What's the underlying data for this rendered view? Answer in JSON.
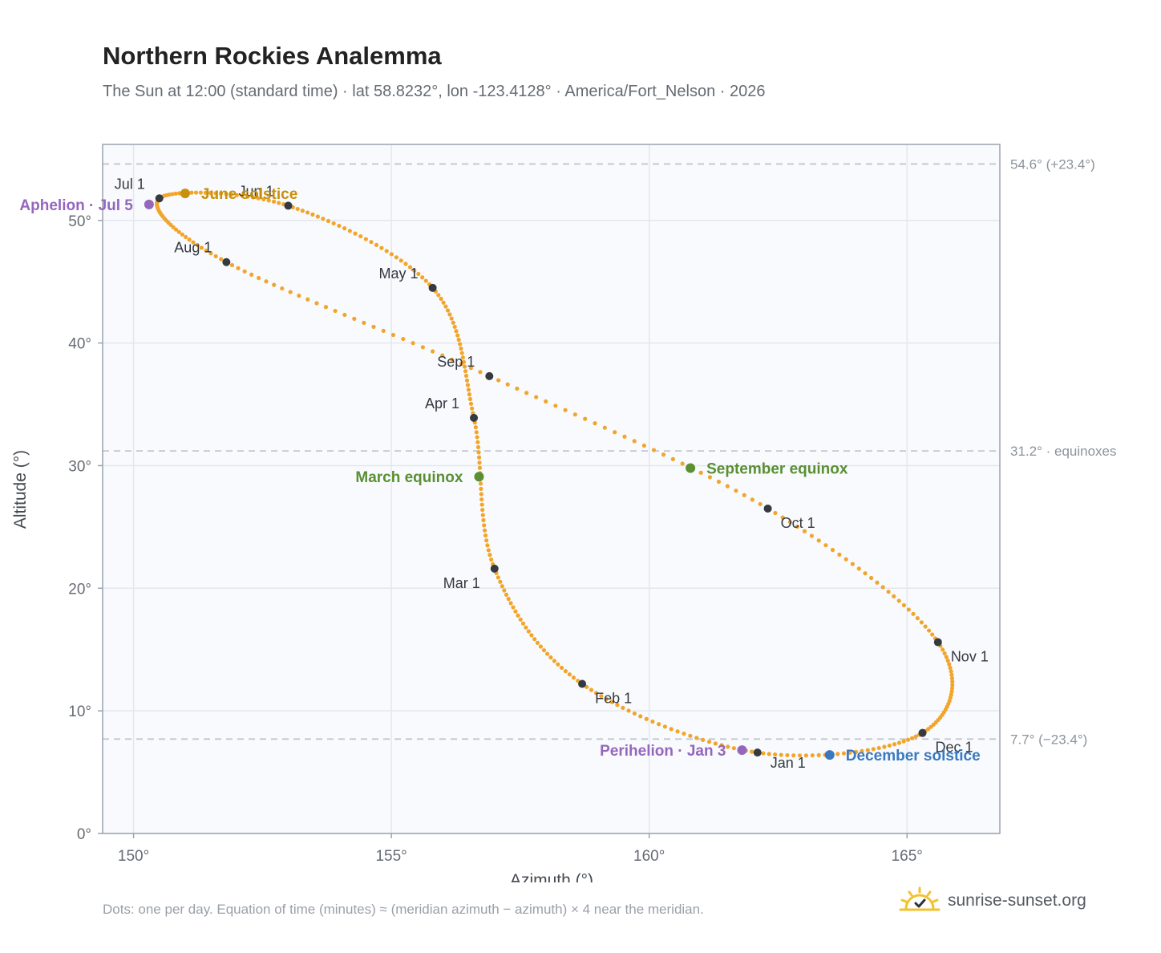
{
  "header": {
    "title": "Northern Rockies Analemma",
    "subtitle": "The Sun at 12:00 (standard time) · lat 58.8232°, lon -123.4128° · America/Fort_Nelson · 2026"
  },
  "footer": {
    "note": "Dots: one per day. Equation of time (minutes) ≈ (meridian azimuth − azimuth) × 4 near the meridian.",
    "brand": "sunrise-sunset.org"
  },
  "colors": {
    "path": "#f2a52a",
    "month_marker": "#343a40",
    "equinox": "#5a8f32",
    "june_solstice": "#c8900c",
    "december_solstice": "#3a78c0",
    "apsis": "#9467bd",
    "reference_line": "#c2c7cf",
    "plot_background": "#f8fafd"
  },
  "chart_data": {
    "type": "scatter",
    "title": "Northern Rockies Analemma",
    "xlabel": "Azimuth (°)",
    "ylabel": "Altitude (°)",
    "xlim": [
      149.4,
      166.8
    ],
    "ylim": [
      0,
      56.2
    ],
    "x_ticks": [
      150,
      155,
      160,
      165
    ],
    "x_tick_labels": [
      "150°",
      "155°",
      "160°",
      "165°"
    ],
    "y_ticks": [
      0,
      10,
      20,
      30,
      40,
      50
    ],
    "y_tick_labels": [
      "0°",
      "10°",
      "20°",
      "30°",
      "40°",
      "50°"
    ],
    "grid": true,
    "reference_lines": [
      {
        "y": 54.6,
        "label": "54.6° (+23.4°)"
      },
      {
        "y": 31.2,
        "label": "31.2° · equinoxes"
      },
      {
        "y": 7.7,
        "label": "7.7° (−23.4°)"
      }
    ],
    "series": [
      {
        "x": [
          162.1,
          158.7,
          157.0,
          156.6,
          155.8,
          153.0,
          150.5,
          151.8,
          156.9,
          162.3,
          165.6,
          165.3,
          162.1
        ],
        "y": [
          6.6,
          12.2,
          21.6,
          33.9,
          44.5,
          51.2,
          51.8,
          46.6,
          37.3,
          26.5,
          15.6,
          8.2,
          6.6
        ]
      }
    ],
    "month_markers": [
      {
        "label": "Jan 1",
        "x": 162.1,
        "y": 6.6
      },
      {
        "label": "Feb 1",
        "x": 158.7,
        "y": 12.2
      },
      {
        "label": "Mar 1",
        "x": 157.0,
        "y": 21.6
      },
      {
        "label": "Apr 1",
        "x": 156.6,
        "y": 33.9
      },
      {
        "label": "May 1",
        "x": 155.8,
        "y": 44.5
      },
      {
        "label": "Jun 1",
        "x": 153.0,
        "y": 51.2
      },
      {
        "label": "Jul 1",
        "x": 150.5,
        "y": 51.8
      },
      {
        "label": "Aug 1",
        "x": 151.8,
        "y": 46.6
      },
      {
        "label": "Sep 1",
        "x": 156.9,
        "y": 37.3
      },
      {
        "label": "Oct 1",
        "x": 162.3,
        "y": 26.5
      },
      {
        "label": "Nov 1",
        "x": 165.6,
        "y": 15.6
      },
      {
        "label": "Dec 1",
        "x": 165.3,
        "y": 8.2
      }
    ],
    "events": [
      {
        "label": "March equinox",
        "x": 156.7,
        "y": 29.1,
        "color": "#5a8f32"
      },
      {
        "label": "June solstice",
        "x": 151.0,
        "y": 52.2,
        "color": "#c8900c"
      },
      {
        "label": "September equinox",
        "x": 160.8,
        "y": 29.8,
        "color": "#5a8f32"
      },
      {
        "label": "December solstice",
        "x": 163.5,
        "y": 6.4,
        "color": "#3a78c0"
      },
      {
        "label": "Perihelion · Jan 3",
        "x": 161.8,
        "y": 6.8,
        "color": "#9467bd"
      },
      {
        "label": "Aphelion · Jul 5",
        "x": 150.3,
        "y": 51.3,
        "color": "#9467bd"
      }
    ]
  }
}
